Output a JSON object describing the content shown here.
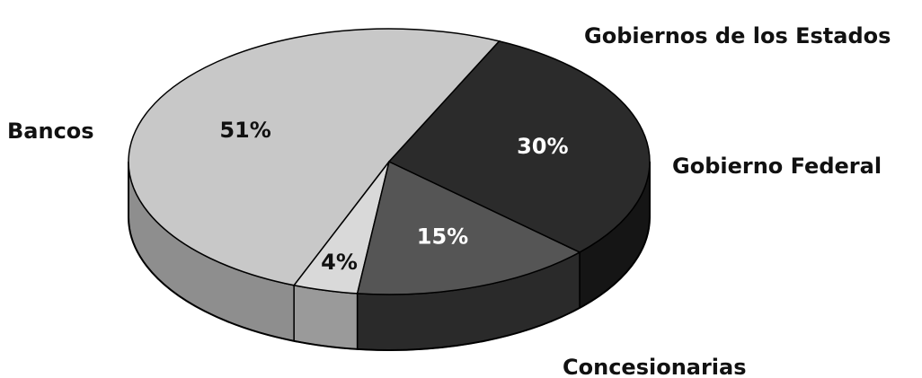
{
  "chart_data": {
    "type": "pie",
    "title": "",
    "three_d": true,
    "slices": [
      {
        "category": "Bancos",
        "value": 51,
        "label": "51%",
        "color": "#c8c8c8",
        "side_color": "#8e8e8e",
        "label_color": "#111111"
      },
      {
        "category": "Gobiernos de los Estados",
        "value": 4,
        "label": "4%",
        "color": "#d9d9d9",
        "side_color": "#9a9a9a",
        "label_color": "#111111"
      },
      {
        "category": "Gobierno Federal",
        "value": 15,
        "label": "15%",
        "color": "#555555",
        "side_color": "#2a2a2a",
        "label_color": "#ffffff"
      },
      {
        "category": "Concesionarias",
        "value": 30,
        "label": "30%",
        "color": "#2b2b2b",
        "side_color": "#151515",
        "label_color": "#ffffff"
      }
    ]
  }
}
